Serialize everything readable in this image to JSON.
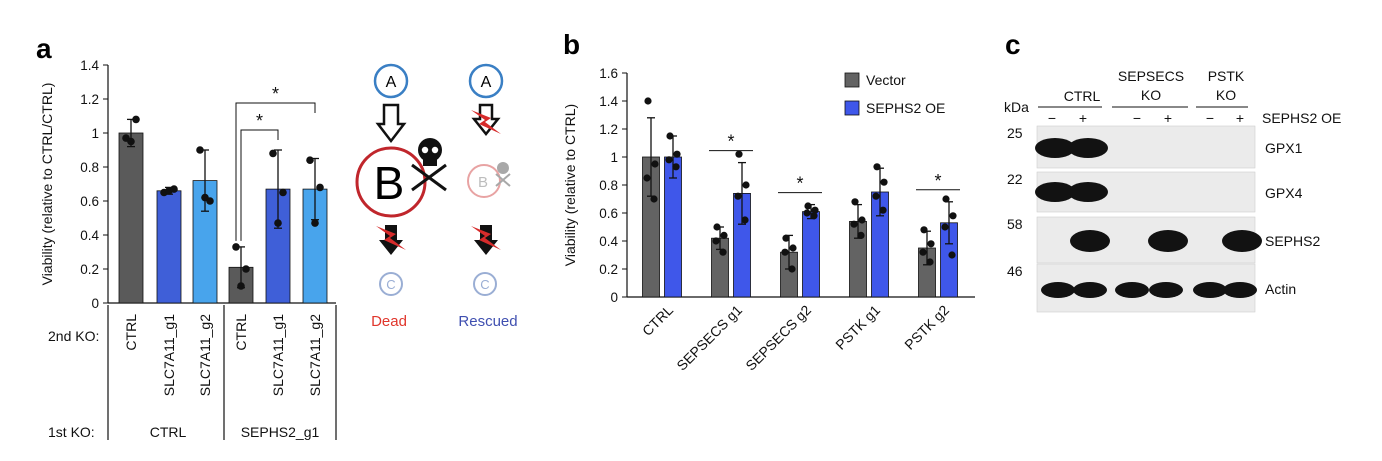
{
  "panel_labels": {
    "a": "a",
    "b": "b",
    "c": "c"
  },
  "colors": {
    "ctrl_bar": "#5a5a5a",
    "g1_bar": "#3f5fd8",
    "g2_bar": "#48a4ec",
    "vector_bar": "#636363",
    "sephs2_bar": "#3f57ea",
    "dead_text": "#e0362c",
    "rescued_text": "#3f4fb0",
    "node_a": "#3a7fc4",
    "node_b": "#c0262c",
    "node_c": "#9aaed4",
    "bolt": "#d62b2b"
  },
  "chart_data": [
    {
      "id": "a",
      "type": "bar",
      "ylabel": "Viability (relative to CTRL/CTRL)",
      "ylim": [
        0,
        1.4
      ],
      "yticks": [
        "0",
        "0.2",
        "0.4",
        "0.6",
        "0.8",
        "1",
        "1.2",
        "1.4"
      ],
      "categories": [
        "CTRL",
        "SLC7A11_g1",
        "SLC7A11_g2",
        "CTRL",
        "SLC7A11_g1",
        "SLC7A11_g2"
      ],
      "values": [
        1.0,
        0.66,
        0.72,
        0.21,
        0.67,
        0.67
      ],
      "errors": [
        0.08,
        0.02,
        0.18,
        0.12,
        0.23,
        0.18
      ],
      "points": [
        [
          0.97,
          0.95,
          1.08
        ],
        [
          0.65,
          0.66,
          0.67
        ],
        [
          0.9,
          0.62,
          0.6
        ],
        [
          0.33,
          0.1,
          0.2
        ],
        [
          0.88,
          0.47,
          0.65
        ],
        [
          0.84,
          0.47,
          0.68
        ]
      ],
      "color_keys": [
        "ctrl_bar",
        "g1_bar",
        "g2_bar",
        "ctrl_bar",
        "g1_bar",
        "g2_bar"
      ],
      "row_labels": {
        "second": "2nd KO:",
        "first": "1st KO:"
      },
      "groups": [
        "CTRL",
        "SEPHS2_g1"
      ],
      "significance": [
        {
          "from": 3,
          "to": 4,
          "label": "*"
        },
        {
          "from": 3,
          "to": 5,
          "label": "*"
        }
      ]
    },
    {
      "id": "b",
      "type": "bar",
      "ylabel": "Viability (relative to CTRL)",
      "ylim": [
        0,
        1.6
      ],
      "yticks": [
        "0",
        "0.2",
        "0.4",
        "0.6",
        "0.8",
        "1",
        "1.2",
        "1.4",
        "1.6"
      ],
      "categories": [
        "CTRL",
        "SEPSECS g1",
        "SEPSECS g2",
        "PSTK g1",
        "PSTK g2"
      ],
      "series": [
        {
          "name": "Vector",
          "values": [
            1.0,
            0.42,
            0.32,
            0.54,
            0.35
          ],
          "errors": [
            0.28,
            0.08,
            0.12,
            0.12,
            0.12
          ],
          "points": [
            [
              1.4,
              0.95,
              0.85,
              0.7
            ],
            [
              0.5,
              0.44,
              0.4,
              0.32
            ],
            [
              0.42,
              0.35,
              0.32,
              0.2
            ],
            [
              0.68,
              0.55,
              0.52,
              0.44
            ],
            [
              0.48,
              0.38,
              0.32,
              0.25
            ]
          ]
        },
        {
          "name": "SEPHS2 OE",
          "values": [
            1.0,
            0.74,
            0.61,
            0.75,
            0.53
          ],
          "errors": [
            0.15,
            0.22,
            0.05,
            0.17,
            0.15
          ],
          "points": [
            [
              1.15,
              1.02,
              0.98,
              0.93
            ],
            [
              1.02,
              0.8,
              0.72,
              0.55
            ],
            [
              0.65,
              0.62,
              0.6,
              0.58
            ],
            [
              0.93,
              0.82,
              0.72,
              0.62
            ],
            [
              0.7,
              0.58,
              0.5,
              0.3
            ]
          ]
        }
      ],
      "legend": [
        "Vector",
        "SEPHS2 OE"
      ],
      "significance": [
        {
          "category": 1,
          "label": "*"
        },
        {
          "category": 2,
          "label": "*"
        },
        {
          "category": 4,
          "label": "*"
        }
      ]
    }
  ],
  "diagram": {
    "node_a": "A",
    "node_b": "B",
    "node_c": "C",
    "dead_label": "Dead",
    "rescued_label": "Rescued"
  },
  "blot": {
    "kda_label": "kDa",
    "groups": [
      "CTRL",
      "SEPSECS\nKO",
      "PSTK\nKO"
    ],
    "sephs2_oe_label": "SEPHS2 OE",
    "lane_signs": [
      "−",
      "+",
      "−",
      "+",
      "−",
      "+"
    ],
    "markers": [
      "25",
      "22",
      "58",
      "46"
    ],
    "proteins": [
      "GPX1",
      "GPX4",
      "SEPHS2",
      "Actin"
    ]
  }
}
